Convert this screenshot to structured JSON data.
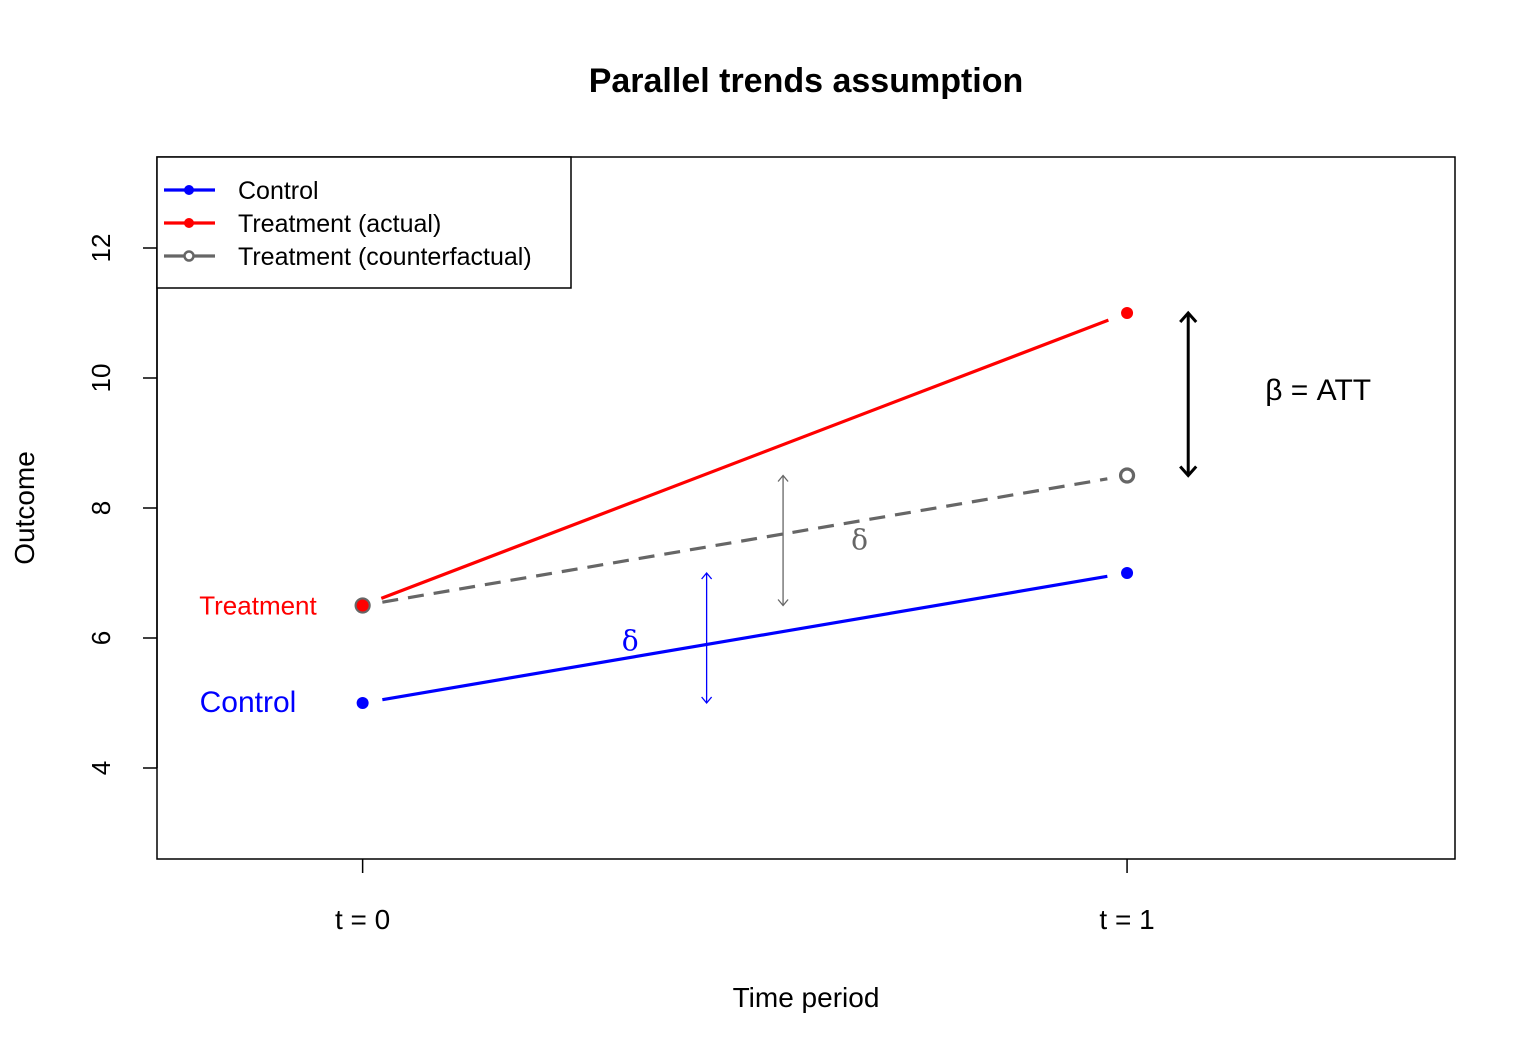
{
  "chart_data": {
    "type": "line",
    "title": "Parallel trends assumption",
    "xlabel": "Time period",
    "ylabel": "Outcome",
    "x": [
      0,
      1
    ],
    "x_tick_labels": [
      "t = 0",
      "t = 1"
    ],
    "xlim": [
      -0.269,
      1.429
    ],
    "ylim": [
      2.6,
      13.4
    ],
    "y_ticks": [
      4,
      6,
      8,
      10,
      12
    ],
    "y_tick_labels": [
      "4",
      "6",
      "8",
      "10",
      "12"
    ],
    "grid": false,
    "legend_position": "top-left",
    "series": [
      {
        "name": "Control",
        "values": [
          5,
          7
        ],
        "color": "#0000ff",
        "dashed": false,
        "open_marker": false
      },
      {
        "name": "Treatment (actual)",
        "values": [
          6.5,
          11
        ],
        "color": "#ff0000",
        "dashed": false,
        "open_marker": false
      },
      {
        "name": "Treatment (counterfactual)",
        "values": [
          6.5,
          8.5
        ],
        "color": "#666666",
        "dashed": true,
        "open_marker": true
      }
    ],
    "annotations": [
      {
        "text": "Treatment",
        "x": -0.06,
        "y": 6.5,
        "color": "#ff0000",
        "anchor": "end"
      },
      {
        "text": "Control",
        "x": -0.15,
        "y": 5,
        "color": "#0000ff",
        "anchor": "middle"
      },
      {
        "text": "δ",
        "x": 0.35,
        "y": 5.95,
        "color": "#0000ff",
        "anchor": "middle",
        "serif": true
      },
      {
        "text": "δ",
        "x": 0.65,
        "y": 7.5,
        "color": "#666666",
        "anchor": "middle",
        "serif": true
      },
      {
        "text": "β = ATT",
        "x": 1.25,
        "y": 9.8,
        "color": "#000000",
        "anchor": "middle"
      }
    ],
    "arrows": [
      {
        "name": "control-delta",
        "x": 0.45,
        "y0": 5,
        "y1": 7,
        "color": "#0000ff",
        "width": 1.3
      },
      {
        "name": "counterfactual-delta",
        "x": 0.55,
        "y0": 6.5,
        "y1": 8.5,
        "color": "#666666",
        "width": 1.3
      },
      {
        "name": "att",
        "x": 1.08,
        "y0": 8.5,
        "y1": 11,
        "color": "#000000",
        "width": 3
      }
    ]
  }
}
